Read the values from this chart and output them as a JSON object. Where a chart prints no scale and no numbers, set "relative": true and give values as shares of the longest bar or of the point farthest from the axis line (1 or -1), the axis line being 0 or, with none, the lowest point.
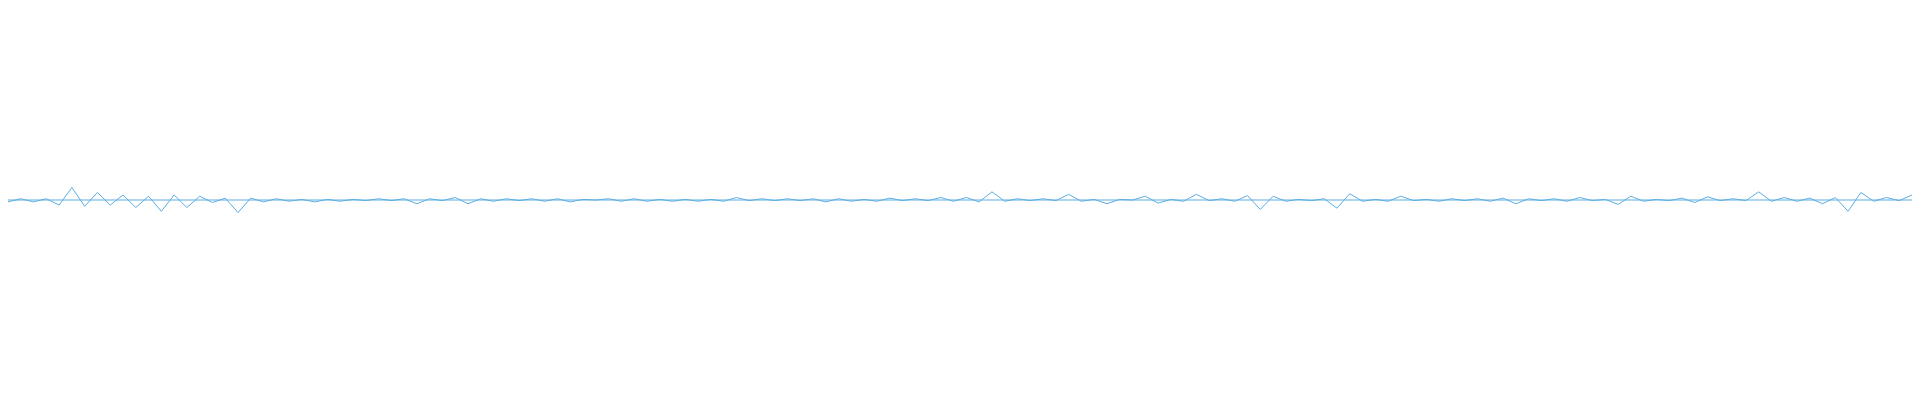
{
  "chart_data": {
    "type": "line",
    "relative": true,
    "legend": false,
    "marker": "none",
    "ref_lines": [
      {
        "axis": "y",
        "value": 0,
        "color": "#5dade2",
        "line_style": "solid"
      }
    ],
    "line_style": "solid",
    "categories": [
      null,
      null,
      null,
      null,
      null,
      null,
      null,
      null,
      null,
      null,
      null,
      null,
      null,
      null,
      null,
      null,
      null,
      null,
      null,
      null,
      null,
      null,
      null,
      null,
      null,
      null,
      null,
      null,
      null,
      null,
      null,
      null,
      null,
      null,
      null,
      null,
      null,
      null,
      null,
      null,
      null,
      null,
      null,
      null,
      null,
      null,
      null,
      null,
      null,
      null,
      null,
      null,
      null,
      null,
      null,
      null,
      null,
      null,
      null,
      null,
      null,
      null,
      null,
      null,
      null,
      null,
      null,
      null,
      null,
      null,
      null,
      null,
      null,
      null,
      null,
      null,
      null,
      null,
      null,
      null,
      null,
      null,
      null,
      null,
      null,
      null,
      null,
      null,
      null,
      null,
      null,
      null,
      null,
      null,
      null,
      null,
      null,
      null,
      null,
      null,
      null,
      null,
      null,
      null,
      null,
      null,
      null,
      null,
      null,
      null,
      null,
      null,
      null,
      null,
      null,
      null,
      null,
      null,
      null,
      null,
      null,
      null,
      null,
      null,
      null,
      null,
      null,
      null,
      null,
      null,
      null,
      null,
      null,
      null,
      null,
      null,
      null,
      null,
      null,
      null,
      null,
      null,
      null,
      null,
      null,
      null,
      null,
      null,
      null,
      null
    ],
    "series": [
      {
        "color": "#5dade2",
        "values": [
          -0.15,
          0.1,
          -0.15,
          0.1,
          -0.4,
          1,
          -0.5,
          0.6,
          -0.4,
          0.4,
          -0.6,
          0.3,
          -0.9,
          0.4,
          -0.6,
          0.3,
          -0.2,
          0.15,
          -1,
          0.15,
          -0.15,
          0.1,
          -0.1,
          0.05,
          -0.15,
          0.05,
          -0.1,
          0.05,
          -0.05,
          0.1,
          -0.05,
          0.1,
          -0.3,
          0.1,
          -0.05,
          0.2,
          -0.3,
          0.1,
          -0.1,
          0.1,
          -0.05,
          0.1,
          -0.1,
          0.1,
          -0.15,
          0.05,
          0,
          0.1,
          -0.1,
          0.1,
          -0.1,
          0.05,
          -0.1,
          0.05,
          -0.1,
          0.05,
          -0.1,
          0.2,
          -0.05,
          0.1,
          -0.05,
          0.1,
          -0.05,
          0.1,
          -0.15,
          0.1,
          -0.1,
          0.05,
          -0.1,
          0.15,
          -0.05,
          0.1,
          -0.05,
          0.2,
          -0.1,
          0.2,
          -0.15,
          0.65,
          -0.1,
          0.1,
          -0.05,
          0.1,
          -0.05,
          0.45,
          -0.1,
          0.05,
          -0.3,
          0.05,
          0,
          0.3,
          -0.25,
          0.05,
          -0.1,
          0.45,
          -0.05,
          0.1,
          -0.1,
          0.35,
          -0.75,
          0.3,
          -0.1,
          0.05,
          -0.05,
          0.1,
          -0.65,
          0.5,
          -0.1,
          0.05,
          -0.1,
          0.3,
          -0.05,
          0.05,
          -0.1,
          0.1,
          -0.05,
          0.1,
          -0.1,
          0.15,
          -0.3,
          0.1,
          -0.05,
          0.1,
          -0.1,
          0.2,
          -0.05,
          0.05,
          -0.35,
          0.3,
          -0.1,
          0.05,
          -0.05,
          0.15,
          -0.2,
          0.25,
          -0.05,
          0.1,
          -0.05,
          0.65,
          -0.1,
          0.2,
          -0.1,
          0.15,
          -0.3,
          0.2,
          -0.9,
          0.6,
          -0.1,
          0.2,
          -0.05,
          0.4
        ]
      }
    ]
  }
}
